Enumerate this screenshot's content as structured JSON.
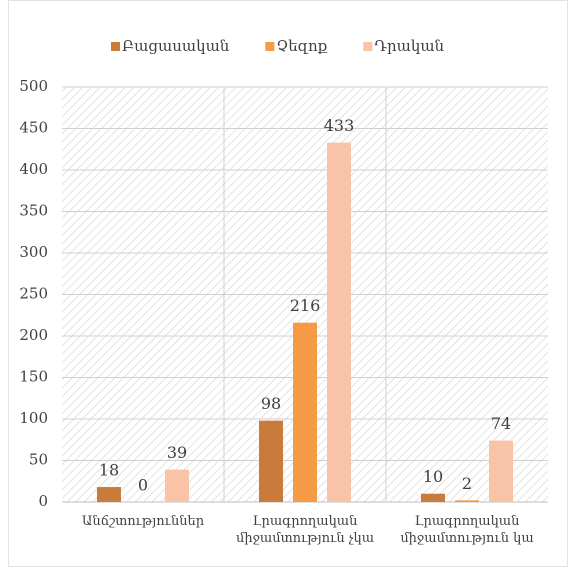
{
  "chart_data": {
    "type": "bar",
    "categories": [
      "Անճշտություններ",
      "Լրագրողական միջամտություն չկա",
      "Լրագրողական միջամտություն կա"
    ],
    "series": [
      {
        "name": "Բացասական",
        "color": "#c97b3b",
        "values": [
          18,
          98,
          10
        ]
      },
      {
        "name": "Չեզոք",
        "color": "#f59a45",
        "values": [
          0,
          216,
          2
        ]
      },
      {
        "name": "Դրական",
        "color": "#f8c3a6",
        "values": [
          39,
          433,
          74
        ]
      }
    ],
    "ylim": [
      0,
      500
    ],
    "yticks": [
      0,
      50,
      100,
      150,
      200,
      250,
      300,
      350,
      400,
      450,
      500
    ],
    "grid": true,
    "legend": "top"
  }
}
